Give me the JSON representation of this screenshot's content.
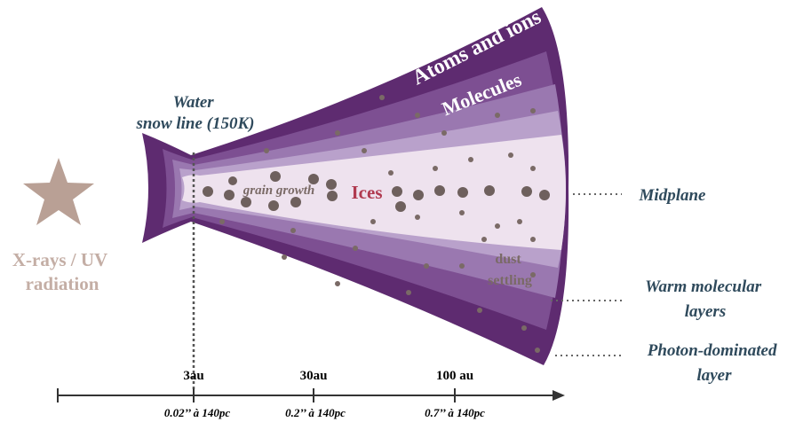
{
  "diagram": {
    "source": {
      "label": [
        "X-rays / UV",
        "radiation"
      ]
    },
    "snow_line": {
      "label": [
        "Water",
        "snow line (150K)"
      ]
    },
    "regions": {
      "atoms": "Atoms and ions",
      "molecules": "Molecules",
      "ices": "Ices",
      "grain_growth": "grain growth",
      "dust_settling": [
        "dust",
        "settling"
      ]
    },
    "layers": {
      "midplane": [
        "Midplane"
      ],
      "warm": [
        "Warm molecular",
        "layers"
      ],
      "photon": [
        "Photon-dominated",
        "layer"
      ]
    },
    "axis": {
      "ticks": [
        "3au",
        "30au",
        "100 au"
      ],
      "angular": [
        "0.02’’ à 140pc",
        "0.2’’ à 140pc",
        "0.7’’ à 140pc"
      ]
    }
  }
}
